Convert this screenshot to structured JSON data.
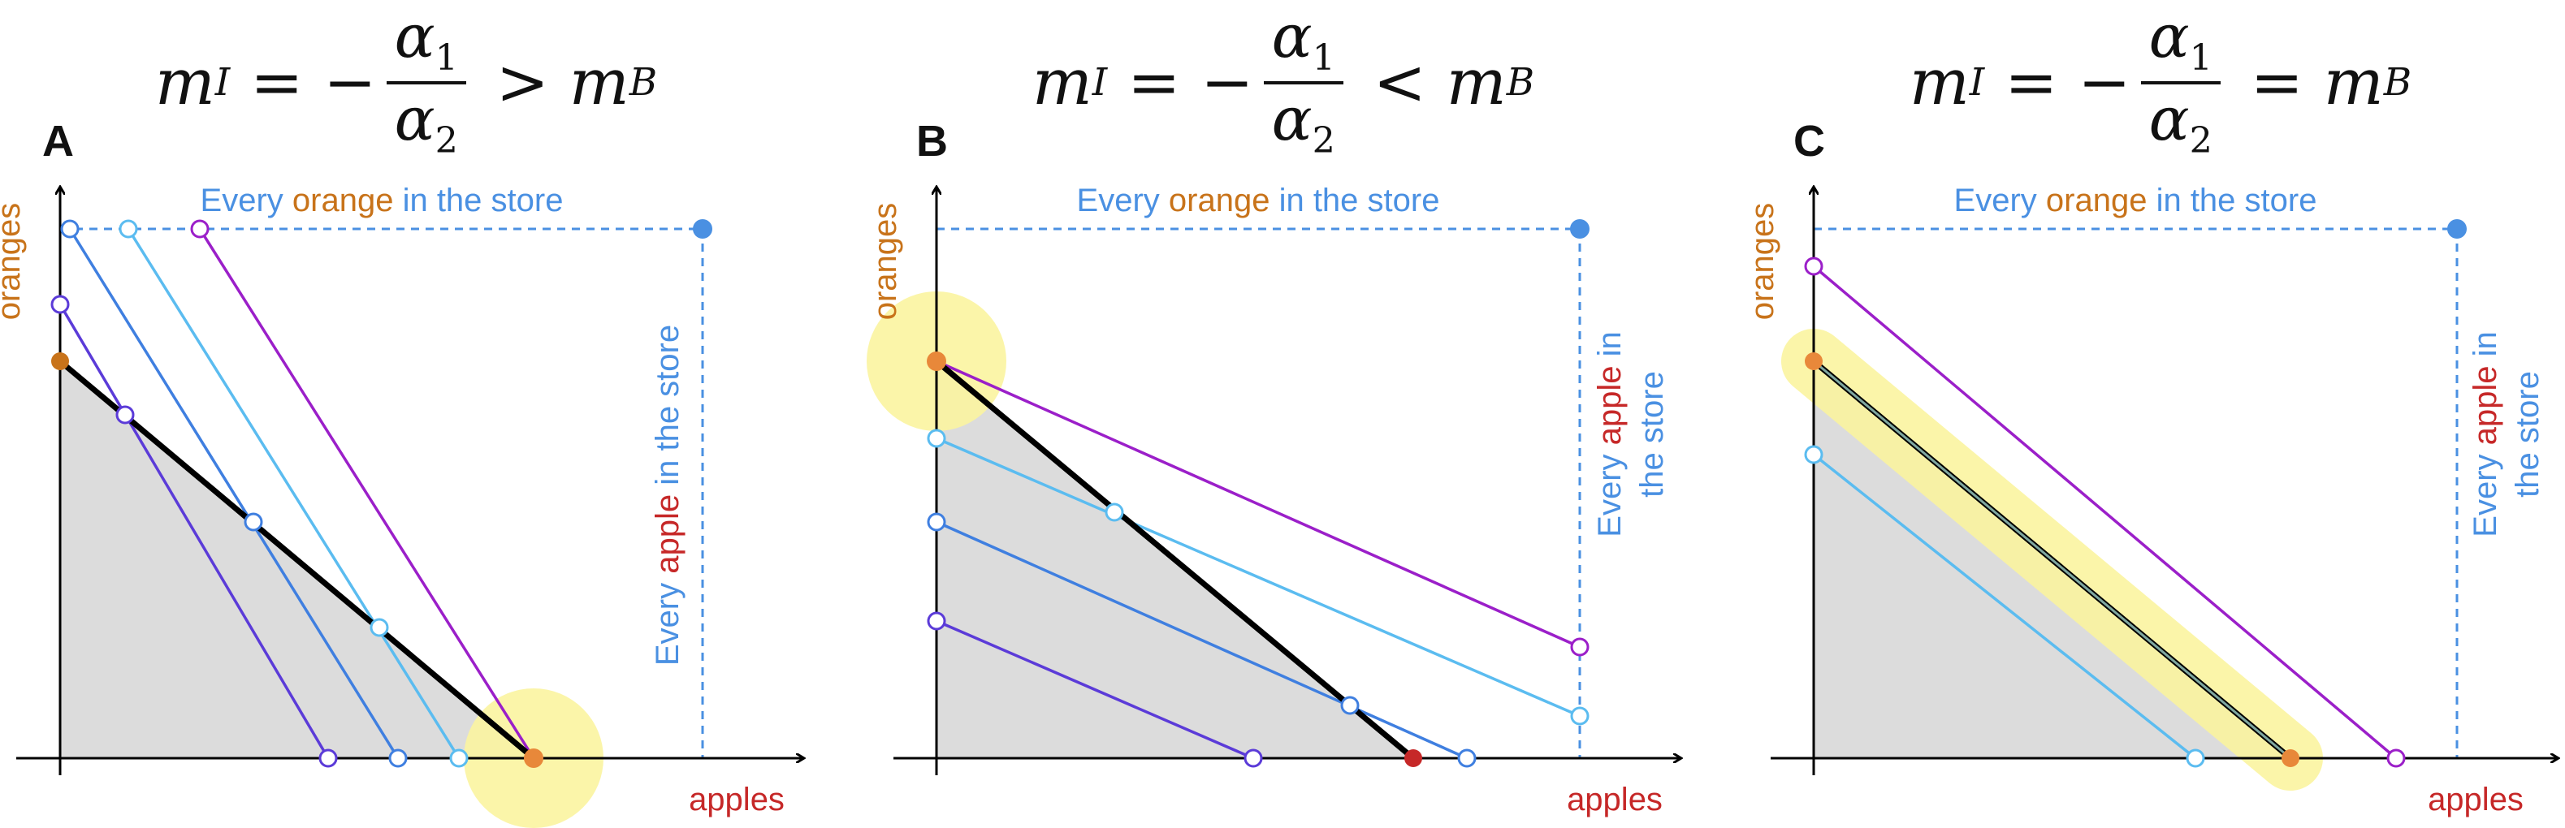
{
  "colors": {
    "blue": "#4a90e2",
    "orange": "#c8731a",
    "red": "#c62828",
    "black": "#000000",
    "purple": "#9b1fc9",
    "indigo": "#5b3bd8",
    "mid_blue": "#3f7fe0",
    "light_blue": "#5bbcf0",
    "highlight": "#fbf4a0",
    "shade": "#dcdcdc",
    "dot_orange": "#e8883a"
  },
  "panels": [
    {
      "letter": "A",
      "formula": {
        "lhs": "m",
        "lhs_sub": "I",
        "eq": " = −",
        "num": "α",
        "num_sub": "1",
        "den": "α",
        "den_sub": "2",
        "rel": " > ",
        "rhs": "m",
        "rhs_sub": "B"
      },
      "y_label": "oranges",
      "x_label": "apples",
      "top_note": {
        "pre": "Every ",
        "key": "orange",
        "post": " in the store"
      },
      "side_note": {
        "pre": "Every ",
        "key": "apple",
        "post": " in the store"
      }
    },
    {
      "letter": "B",
      "formula": {
        "lhs": "m",
        "lhs_sub": "I",
        "eq": " = −",
        "num": "α",
        "num_sub": "1",
        "den": "α",
        "den_sub": "2",
        "rel": " < ",
        "rhs": "m",
        "rhs_sub": "B"
      },
      "y_label": "oranges",
      "x_label": "apples",
      "top_note": {
        "pre": "Every ",
        "key": "orange",
        "post": " in the store"
      },
      "side_note": {
        "pre": "Every ",
        "key": "apple",
        "post": " in",
        "line2": "the store"
      }
    },
    {
      "letter": "C",
      "formula": {
        "lhs": "m",
        "lhs_sub": "I",
        "eq": " = −",
        "num": "α",
        "num_sub": "1",
        "den": "α",
        "den_sub": "2",
        "rel": " = ",
        "rhs": "m",
        "rhs_sub": "B"
      },
      "y_label": "oranges",
      "x_label": "apples",
      "top_note": {
        "pre": "Every ",
        "key": "orange",
        "post": " in the store"
      },
      "side_note": {
        "pre": "Every ",
        "key": "apple",
        "post": " in",
        "line2": "the store"
      }
    }
  ]
}
